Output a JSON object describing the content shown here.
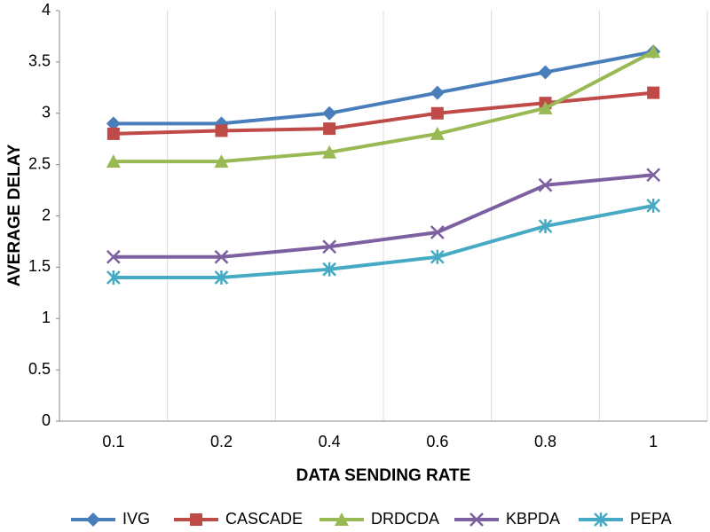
{
  "chart_data": {
    "type": "line",
    "x_label": "DATA SENDING RATE",
    "y_label": "AVERAGE DELAY",
    "categories": [
      "0.1",
      "0.2",
      "0.4",
      "0.6",
      "0.8",
      "1"
    ],
    "ylim": [
      0,
      4
    ],
    "yticks": [
      0,
      0.5,
      1,
      1.5,
      2,
      2.5,
      3,
      3.5,
      4
    ],
    "grid": "vertical",
    "legend": "bottom",
    "series": [
      {
        "name": "IVG",
        "color": "#4a7ebb",
        "marker": "diamond",
        "values": [
          2.9,
          2.9,
          3.0,
          3.2,
          3.4,
          3.6
        ]
      },
      {
        "name": "CASCADE",
        "color": "#be4b48",
        "marker": "square",
        "values": [
          2.8,
          2.83,
          2.85,
          3.0,
          3.1,
          3.2
        ]
      },
      {
        "name": "DRDCDA",
        "color": "#98b954",
        "marker": "triangle",
        "values": [
          2.53,
          2.53,
          2.62,
          2.8,
          3.05,
          3.6
        ]
      },
      {
        "name": "KBPDA",
        "color": "#7d60a0",
        "marker": "x",
        "values": [
          1.6,
          1.6,
          1.7,
          1.84,
          2.3,
          2.4
        ]
      },
      {
        "name": "PEPA",
        "color": "#46aac5",
        "marker": "asterisk",
        "values": [
          1.4,
          1.4,
          1.48,
          1.6,
          1.9,
          2.1
        ]
      }
    ]
  }
}
